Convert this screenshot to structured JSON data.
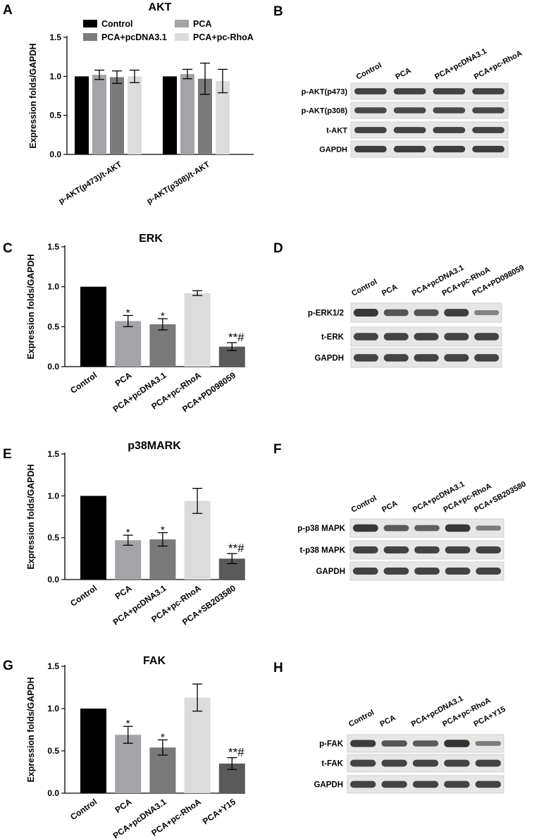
{
  "panels": [
    {
      "letter": "A",
      "title": "AKT",
      "ylabel": "Expression folds/GAPDH",
      "kind": "grouped-bar",
      "legend": [
        "Control",
        "PCA",
        "PCA+pcDNA3.1",
        "PCA+pc-RhoA"
      ],
      "chart_data": {
        "type": "bar",
        "categories": [
          "p-AKT(p473)/t-AKT",
          "p-AKT(p308)/t-AKT"
        ],
        "series": [
          {
            "name": "Control",
            "values": [
              1.0,
              1.0
            ],
            "errors": [
              0,
              0
            ],
            "color": "#000000"
          },
          {
            "name": "PCA",
            "values": [
              1.02,
              1.03
            ],
            "errors": [
              0.06,
              0.06
            ],
            "color": "#a3a3a8"
          },
          {
            "name": "PCA+pcDNA3.1",
            "values": [
              0.99,
              0.97
            ],
            "errors": [
              0.08,
              0.2
            ],
            "color": "#7a7a7a"
          },
          {
            "name": "PCA+pc-RhoA",
            "values": [
              1.0,
              0.94
            ],
            "errors": [
              0.08,
              0.15
            ],
            "color": "#dcdcdc"
          }
        ],
        "ylim": [
          0,
          1.5
        ],
        "yticks": [
          "0.0",
          "0.5",
          "1.0",
          "1.5"
        ],
        "xlabel": "",
        "ylabel": "Expression folds/GAPDH",
        "title": "AKT",
        "legend_position": "top"
      }
    },
    {
      "letter": "C",
      "title": "ERK",
      "ylabel": "Expression folds/GAPDH",
      "kind": "bar",
      "chart_data": {
        "type": "bar",
        "categories": [
          "Control",
          "PCA",
          "PCA+pcDNA3.1",
          "PCA+pc-RhoA",
          "PCA+PD098059"
        ],
        "values": [
          1.0,
          0.57,
          0.53,
          0.92,
          0.25
        ],
        "errors": [
          0,
          0.07,
          0.07,
          0.03,
          0.05
        ],
        "annotations": [
          "",
          "*",
          "*",
          "",
          "**#"
        ],
        "colors": [
          "#000000",
          "#a3a3a8",
          "#7a7a7a",
          "#dcdcdc",
          "#5a5a5a"
        ],
        "ylim": [
          0,
          1.5
        ],
        "yticks": [
          "0.0",
          "0.5",
          "1.0",
          "1.5"
        ],
        "xlabel": "",
        "ylabel": "Expression folds/GAPDH",
        "title": "ERK"
      }
    },
    {
      "letter": "E",
      "title": "p38MARK",
      "ylabel": "Expression folds/GAPDH",
      "kind": "bar",
      "chart_data": {
        "type": "bar",
        "categories": [
          "Control",
          "PCA",
          "PCA+pcDNA3.1",
          "PCA+pc-RhoA",
          "PCA+SB203580"
        ],
        "values": [
          1.0,
          0.47,
          0.48,
          0.94,
          0.25
        ],
        "errors": [
          0,
          0.06,
          0.08,
          0.15,
          0.06
        ],
        "annotations": [
          "",
          "*",
          "*",
          "",
          "**#"
        ],
        "colors": [
          "#000000",
          "#a3a3a8",
          "#7a7a7a",
          "#dcdcdc",
          "#5a5a5a"
        ],
        "ylim": [
          0,
          1.5
        ],
        "yticks": [
          "0.0",
          "0.5",
          "1.0",
          "1.5"
        ],
        "xlabel": "",
        "ylabel": "Expression folds/GAPDH",
        "title": "p38MARK"
      }
    },
    {
      "letter": "G",
      "title": "FAK",
      "ylabel": "Expression folds/GAPDH",
      "kind": "bar",
      "chart_data": {
        "type": "bar",
        "categories": [
          "Control",
          "PCA",
          "PCA+pcDNA3.1",
          "PCA+pc-RhoA",
          "PCA+Y15"
        ],
        "values": [
          1.0,
          0.69,
          0.54,
          1.13,
          0.35
        ],
        "errors": [
          0,
          0.1,
          0.09,
          0.16,
          0.07
        ],
        "annotations": [
          "",
          "*",
          "*",
          "",
          "**#"
        ],
        "colors": [
          "#000000",
          "#a3a3a8",
          "#7a7a7a",
          "#dcdcdc",
          "#5a5a5a"
        ],
        "ylim": [
          0,
          1.5
        ],
        "yticks": [
          "0.0",
          "0.5",
          "1.0",
          "1.5"
        ],
        "xlabel": "",
        "ylabel": "Expression folds/GAPDH",
        "title": "FAK"
      }
    }
  ],
  "blots": [
    {
      "letter": "B",
      "lanes": [
        "Control",
        "PCA",
        "PCA+pcDNA3.1",
        "PCA+pc-RhoA"
      ],
      "rows": [
        {
          "label": "p-AKT(p473)",
          "intensity": [
            0.85,
            0.85,
            0.85,
            0.85
          ]
        },
        {
          "label": "p-AKT(p308)",
          "intensity": [
            0.8,
            0.8,
            0.8,
            0.8
          ]
        },
        {
          "label": "t-AKT",
          "intensity": [
            0.85,
            0.85,
            0.85,
            0.85
          ]
        },
        {
          "label": "GAPDH",
          "intensity": [
            0.9,
            0.9,
            0.9,
            0.9
          ]
        }
      ]
    },
    {
      "letter": "D",
      "lanes": [
        "Control",
        "PCA",
        "PCA+pcDNA3.1",
        "PCA+pc-RhoA",
        "PCA+PD098059"
      ],
      "rows": [
        {
          "label": "p-ERK1/2",
          "intensity": [
            0.95,
            0.7,
            0.7,
            0.9,
            0.3
          ]
        },
        {
          "label": "t-ERK",
          "intensity": [
            0.85,
            0.85,
            0.85,
            0.85,
            0.85
          ]
        },
        {
          "label": "GAPDH",
          "intensity": [
            0.85,
            0.85,
            0.85,
            0.85,
            0.85
          ]
        }
      ]
    },
    {
      "letter": "F",
      "lanes": [
        "Control",
        "PCA",
        "PCA+pcDNA3.1",
        "PCA+pc-RhoA",
        "PCA+SB203580"
      ],
      "rows": [
        {
          "label": "p-p38 MAPK",
          "intensity": [
            0.95,
            0.65,
            0.6,
            0.95,
            0.35
          ]
        },
        {
          "label": "t-p38 MAPK",
          "intensity": [
            0.85,
            0.85,
            0.85,
            0.85,
            0.85
          ]
        },
        {
          "label": "GAPDH",
          "intensity": [
            0.85,
            0.85,
            0.85,
            0.85,
            0.85
          ]
        }
      ]
    },
    {
      "letter": "H",
      "lanes": [
        "Control",
        "PCA",
        "PCA+pcDNA3.1",
        "PCA+pc-RhoA",
        "PCA+Y15"
      ],
      "rows": [
        {
          "label": "p-FAK",
          "intensity": [
            0.9,
            0.7,
            0.65,
            1.0,
            0.35
          ]
        },
        {
          "label": "t-FAK",
          "intensity": [
            0.85,
            0.85,
            0.85,
            0.85,
            0.85
          ]
        },
        {
          "label": "GAPDH",
          "intensity": [
            0.85,
            0.85,
            0.85,
            0.85,
            0.85
          ]
        }
      ]
    }
  ]
}
